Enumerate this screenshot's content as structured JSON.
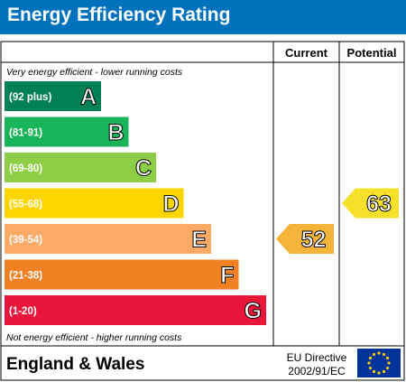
{
  "header": {
    "title": "Energy Efficiency Rating"
  },
  "columns": {
    "current": "Current",
    "potential": "Potential"
  },
  "chart_data": {
    "type": "bar",
    "title": "Energy Efficiency Rating",
    "top_note": "Very energy efficient - lower running costs",
    "bottom_note": "Not energy efficient - higher running costs",
    "bands": [
      {
        "range": "(92 plus)",
        "letter": "A",
        "color": "#008054",
        "level": 1
      },
      {
        "range": "(81-91)",
        "letter": "B",
        "color": "#19b459",
        "level": 2
      },
      {
        "range": "(69-80)",
        "letter": "C",
        "color": "#8dce46",
        "level": 3
      },
      {
        "range": "(55-68)",
        "letter": "D",
        "color": "#ffd500",
        "level": 4
      },
      {
        "range": "(39-54)",
        "letter": "E",
        "color": "#fcaa65",
        "level": 5
      },
      {
        "range": "(21-38)",
        "letter": "F",
        "color": "#ef8023",
        "level": 6
      },
      {
        "range": "(1-20)",
        "letter": "G",
        "color": "#e9153b",
        "level": 7
      }
    ],
    "current": {
      "value": 52,
      "band": "E",
      "color": "#f4b43a"
    },
    "potential": {
      "value": 63,
      "band": "D",
      "color": "#f7e02a"
    }
  },
  "footer": {
    "region": "England & Wales",
    "directive_line1": "EU Directive",
    "directive_line2": "2002/91/EC"
  }
}
